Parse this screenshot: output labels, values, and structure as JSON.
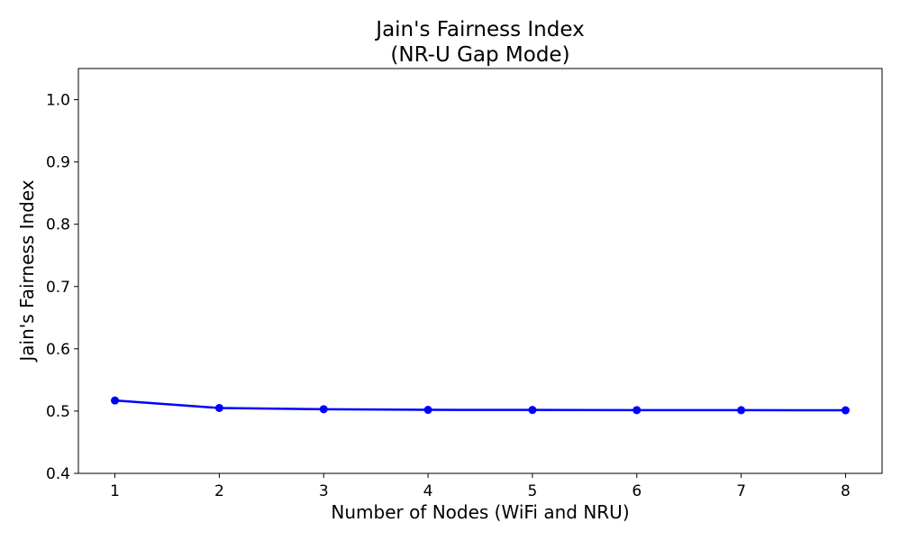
{
  "chart_data": {
    "type": "line",
    "title": "Jain's Fairness Index\n(NR-U Gap Mode)",
    "title_lines": [
      "Jain's Fairness Index",
      "(NR-U Gap Mode)"
    ],
    "xlabel": "Number of Nodes (WiFi and NRU)",
    "ylabel": "Jain's Fairness Index",
    "x": [
      1,
      2,
      3,
      4,
      5,
      6,
      7,
      8
    ],
    "series": [
      {
        "values": [
          0.517,
          0.505,
          0.503,
          0.502,
          0.5018,
          0.5016,
          0.5015,
          0.5013
        ],
        "color": "#0000ff",
        "marker": "circle"
      }
    ],
    "xlim": [
      0.65,
      8.35
    ],
    "ylim": [
      0.4,
      1.05
    ],
    "x_ticks": [
      1,
      2,
      3,
      4,
      5,
      6,
      7,
      8
    ],
    "y_ticks": [
      0.4,
      0.5,
      0.6,
      0.7,
      0.8,
      0.9,
      1.0
    ],
    "y_tick_labels": [
      "0.4",
      "0.5",
      "0.6",
      "0.7",
      "0.8",
      "0.9",
      "1.0"
    ],
    "grid": false,
    "legend": "none"
  }
}
